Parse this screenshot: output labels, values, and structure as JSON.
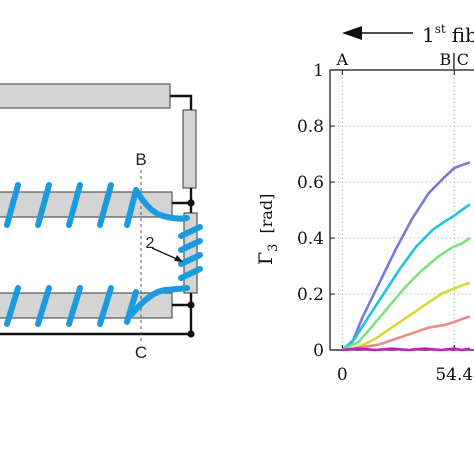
{
  "diagram": {
    "point_b": "B",
    "point_c": "C",
    "callout": "2"
  },
  "chart_data": {
    "type": "line",
    "header_text": "1",
    "header_sup": "st",
    "header_word": "fib",
    "ylabel_symbol": "Γ",
    "ylabel_subscript": "3",
    "ylabel_unit": "[rad]",
    "ylim": [
      0,
      1.0
    ],
    "yticks": [
      "0",
      "0.2",
      "0.4",
      "0.6",
      "0.8",
      "1"
    ],
    "xticks": [
      "0",
      "54.4"
    ],
    "x_markers": [
      "A",
      "B|C"
    ],
    "grid": true,
    "series": [
      {
        "color": "#7b78dc",
        "points": [
          [
            0,
            0.0
          ],
          [
            5,
            0.03
          ],
          [
            10,
            0.12
          ],
          [
            18,
            0.24
          ],
          [
            26,
            0.36
          ],
          [
            34,
            0.47
          ],
          [
            42,
            0.56
          ],
          [
            50,
            0.62
          ],
          [
            54.4,
            0.65
          ],
          [
            58,
            0.66
          ],
          [
            62,
            0.67
          ]
        ]
      },
      {
        "color": "#1cc6d6",
        "points": [
          [
            0,
            0.0
          ],
          [
            6,
            0.04
          ],
          [
            12,
            0.11
          ],
          [
            20,
            0.2
          ],
          [
            28,
            0.29
          ],
          [
            36,
            0.37
          ],
          [
            44,
            0.43
          ],
          [
            50,
            0.46
          ],
          [
            54.4,
            0.48
          ],
          [
            58,
            0.5
          ],
          [
            62,
            0.52
          ]
        ]
      },
      {
        "color": "#7fe07f",
        "points": [
          [
            0,
            0.0
          ],
          [
            8,
            0.03
          ],
          [
            14,
            0.08
          ],
          [
            22,
            0.15
          ],
          [
            30,
            0.22
          ],
          [
            38,
            0.28
          ],
          [
            46,
            0.33
          ],
          [
            52,
            0.36
          ],
          [
            54.4,
            0.37
          ],
          [
            58,
            0.38
          ],
          [
            62,
            0.4
          ]
        ]
      },
      {
        "color": "#d8d83a",
        "points": [
          [
            0,
            0.0
          ],
          [
            8,
            0.01
          ],
          [
            16,
            0.04
          ],
          [
            24,
            0.08
          ],
          [
            32,
            0.12
          ],
          [
            40,
            0.16
          ],
          [
            48,
            0.2
          ],
          [
            54.4,
            0.22
          ],
          [
            58,
            0.23
          ],
          [
            62,
            0.24
          ]
        ]
      },
      {
        "color": "#ee8a86",
        "points": [
          [
            0,
            0.0
          ],
          [
            10,
            0.01
          ],
          [
            18,
            0.02
          ],
          [
            26,
            0.04
          ],
          [
            34,
            0.06
          ],
          [
            42,
            0.08
          ],
          [
            50,
            0.09
          ],
          [
            54.4,
            0.1
          ],
          [
            58,
            0.11
          ],
          [
            62,
            0.12
          ]
        ]
      },
      {
        "color": "#c21ec2",
        "points": [
          [
            0,
            0.0
          ],
          [
            8,
            0.005
          ],
          [
            16,
            0.0
          ],
          [
            24,
            0.005
          ],
          [
            32,
            0.0
          ],
          [
            40,
            0.005
          ],
          [
            48,
            0.0
          ],
          [
            54.4,
            0.005
          ],
          [
            58,
            0.0
          ],
          [
            62,
            0.005
          ]
        ]
      }
    ]
  }
}
